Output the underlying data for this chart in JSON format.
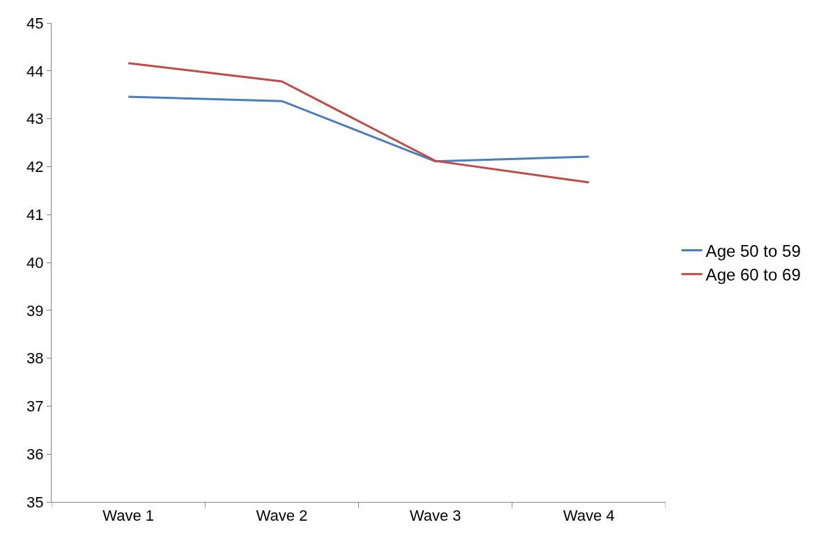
{
  "chart_data": {
    "type": "line",
    "categories": [
      "Wave 1",
      "Wave 2",
      "Wave 3",
      "Wave 4"
    ],
    "series": [
      {
        "name": "Age 50 to 59",
        "color": "#4a7ebb",
        "values": [
          43.46,
          43.37,
          42.11,
          42.21
        ]
      },
      {
        "name": "Age 60 to 69",
        "color": "#be4b48",
        "values": [
          44.16,
          43.78,
          42.12,
          41.67
        ]
      }
    ],
    "ylim": [
      35,
      45
    ],
    "yticks": [
      35,
      36,
      37,
      38,
      39,
      40,
      41,
      42,
      43,
      44,
      45
    ],
    "legend": "right",
    "marker": "none",
    "line_style": "solid"
  }
}
